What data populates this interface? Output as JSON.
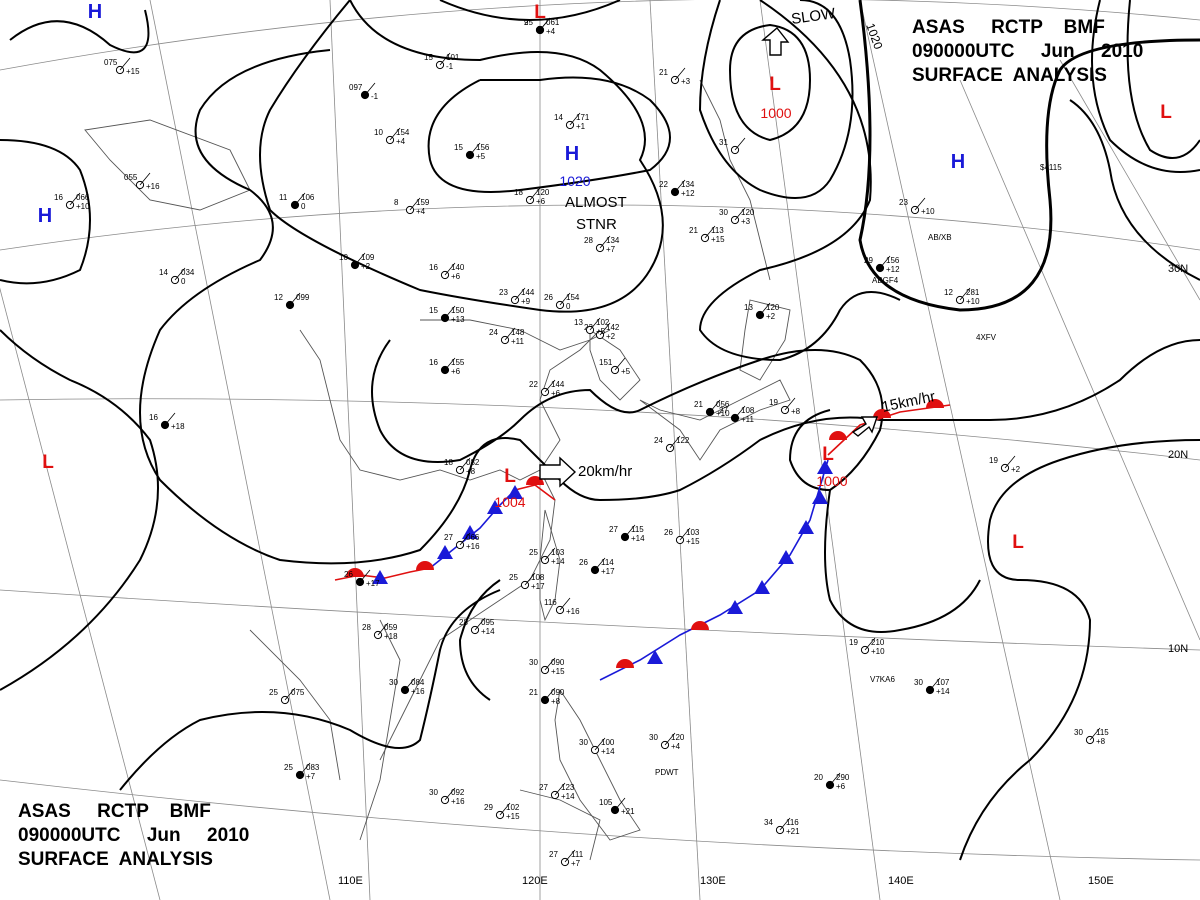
{
  "header_top": {
    "line1": "ASAS     RCTP    BMF",
    "line2": "090000UTC     Jun     2010",
    "line3": "SURFACE  ANALYSIS"
  },
  "header_bottom": {
    "line1": "ASAS     RCTP    BMF",
    "line2": "090000UTC     Jun     2010",
    "line3": "SURFACE  ANALYSIS"
  },
  "longitude_labels": [
    "110E",
    "120E",
    "130E",
    "140E",
    "150E"
  ],
  "latitude_labels": [
    "30N",
    "20N",
    "10N"
  ],
  "pressure_centers": [
    {
      "type": "H",
      "value": "1020"
    },
    {
      "type": "L",
      "value": "1000"
    },
    {
      "type": "L",
      "value": "1004"
    },
    {
      "type": "L",
      "value": "1000"
    },
    {
      "type": "H",
      "value": ""
    },
    {
      "type": "H",
      "value": ""
    },
    {
      "type": "H",
      "value": ""
    },
    {
      "type": "L",
      "value": ""
    },
    {
      "type": "L",
      "value": ""
    },
    {
      "type": "L",
      "value": ""
    },
    {
      "type": "L",
      "value": ""
    }
  ],
  "annotations": {
    "almost": "ALMOST",
    "stnr": "STNR",
    "motion_20": "20km/hr",
    "motion_15": "15km/hr",
    "slow": "SLOW",
    "isobar_1020": "1020"
  },
  "colors": {
    "high": "#1a1ad8",
    "low": "#e01010",
    "warm_front": "#e01010",
    "cold_front": "#1a1ad8",
    "isobar": "#000000",
    "grid": "#8a8a8a",
    "coast": "#555555"
  },
  "station_plots": [
    {
      "t": "25",
      "p": "061",
      "d": "+4"
    },
    {
      "t": "15",
      "p": "101",
      "d": "-1"
    },
    {
      "t": "075",
      "p": "",
      "d": "+15"
    },
    {
      "t": "097",
      "p": "",
      "d": "-1"
    },
    {
      "t": "10",
      "p": "154",
      "d": "+4"
    },
    {
      "t": "14",
      "p": "171",
      "d": "+1"
    },
    {
      "t": "15",
      "p": "156",
      "d": "+5"
    },
    {
      "t": "055",
      "p": "",
      "d": "+16"
    },
    {
      "t": "16",
      "p": "066",
      "d": "+10"
    },
    {
      "t": "11",
      "p": "106",
      "d": "0"
    },
    {
      "t": "8",
      "p": "159",
      "d": "+4"
    },
    {
      "t": "18",
      "p": "120",
      "d": "+6"
    },
    {
      "t": "22",
      "p": "134",
      "d": "+12"
    },
    {
      "t": "21",
      "p": "113",
      "d": "+15"
    },
    {
      "t": "28",
      "p": "134",
      "d": "+7"
    },
    {
      "t": "10",
      "p": "109",
      "d": "+2"
    },
    {
      "t": "16",
      "p": "140",
      "d": "+6"
    },
    {
      "t": "14",
      "p": "034",
      "d": "0"
    },
    {
      "t": "12",
      "p": "099",
      "d": ""
    },
    {
      "t": "23",
      "p": "144",
      "d": "+9"
    },
    {
      "t": "26",
      "p": "154",
      "d": "0"
    },
    {
      "t": "15",
      "p": "150",
      "d": "+13"
    },
    {
      "t": "24",
      "p": "148",
      "d": "+11"
    },
    {
      "t": "23",
      "p": "142",
      "d": "+2"
    },
    {
      "t": "16",
      "p": "155",
      "d": "+6"
    },
    {
      "t": "151",
      "p": "",
      "d": "+5"
    },
    {
      "t": "22",
      "p": "144",
      "d": "+6"
    },
    {
      "t": "16",
      "p": "",
      "d": "+18"
    },
    {
      "t": "18",
      "p": "082",
      "d": "+8"
    },
    {
      "t": "19",
      "p": "",
      "d": "+8"
    },
    {
      "t": "21",
      "p": "056",
      "d": "+10"
    },
    {
      "t": "27",
      "p": "066",
      "d": "+16"
    },
    {
      "t": "25",
      "p": "103",
      "d": "+14"
    },
    {
      "t": "26",
      "p": "114",
      "d": "+17"
    },
    {
      "t": "25",
      "p": "108",
      "d": "+17"
    },
    {
      "t": "116",
      "p": "",
      "d": "+16"
    },
    {
      "t": "26",
      "p": "",
      "d": "+17"
    },
    {
      "t": "28",
      "p": "059",
      "d": "+18"
    },
    {
      "t": "28",
      "p": "095",
      "d": "+14"
    },
    {
      "t": "30",
      "p": "084",
      "d": "+16"
    },
    {
      "t": "25",
      "p": "075",
      "d": ""
    },
    {
      "t": "30",
      "p": "090",
      "d": "+15"
    },
    {
      "t": "21",
      "p": "090",
      "d": "+8"
    },
    {
      "t": "30",
      "p": "100",
      "d": "+14"
    },
    {
      "t": "30",
      "p": "120",
      "d": "+4"
    },
    {
      "t": "25",
      "p": "083",
      "d": "+7"
    },
    {
      "t": "30",
      "p": "092",
      "d": "+16"
    },
    {
      "t": "27",
      "p": "123",
      "d": "+14"
    },
    {
      "t": "105",
      "p": "",
      "d": "+21"
    },
    {
      "t": "29",
      "p": "102",
      "d": "+15"
    },
    {
      "t": "27",
      "p": "111",
      "d": "+7"
    },
    {
      "t": "27",
      "p": "115",
      "d": "+14"
    },
    {
      "t": "26",
      "p": "103",
      "d": "+15"
    },
    {
      "t": "24",
      "p": "122",
      "d": ""
    },
    {
      "t": "27",
      "p": "108",
      "d": "+11"
    },
    {
      "t": "19",
      "p": "",
      "d": "+2"
    },
    {
      "t": "23",
      "p": "",
      "d": "+10"
    },
    {
      "t": "29",
      "p": "156",
      "d": "+12"
    },
    {
      "t": "12",
      "p": "281",
      "d": "+10"
    },
    {
      "t": "19",
      "p": "210",
      "d": "+10"
    },
    {
      "t": "20",
      "p": "290",
      "d": "+6"
    },
    {
      "t": "34",
      "p": "116",
      "d": "+21"
    },
    {
      "t": "30",
      "p": "115",
      "d": "+8"
    },
    {
      "t": "30",
      "p": "107",
      "d": "+14"
    },
    {
      "t": "30",
      "p": "120",
      "d": "+3"
    },
    {
      "t": "31",
      "p": "",
      "d": ""
    },
    {
      "t": "13",
      "p": "120",
      "d": "+2"
    },
    {
      "t": "13",
      "p": "102",
      "d": "+5"
    },
    {
      "t": "21",
      "p": "",
      "d": "+3"
    },
    {
      "t": "9",
      "p": "",
      "d": ""
    }
  ],
  "ship_callsigns": [
    "AB/XB",
    "ABGF4",
    "4XFV",
    "V7KA6",
    "PDWT",
    "$4115"
  ]
}
